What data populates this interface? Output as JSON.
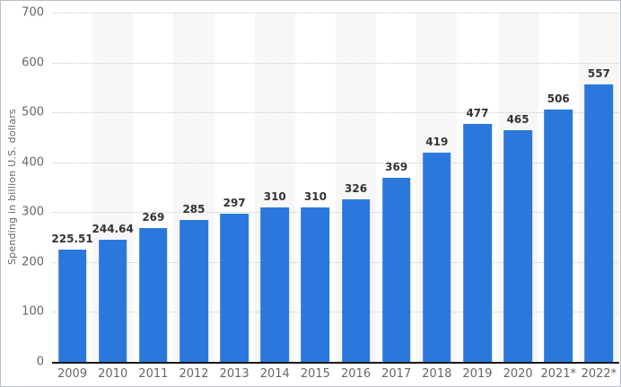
{
  "chart_data": {
    "type": "bar",
    "title": "",
    "xlabel": "",
    "ylabel": "Spending in billion U.S. dollars",
    "ylim": [
      0,
      700
    ],
    "yticks": [
      0,
      100,
      200,
      300,
      400,
      500,
      600,
      700
    ],
    "grid": "horizontal-dotted",
    "legend": "none",
    "categories": [
      "2009",
      "2010",
      "2011",
      "2012",
      "2013",
      "2014",
      "2015",
      "2016",
      "2017",
      "2018",
      "2019",
      "2020",
      "2021*",
      "2022*"
    ],
    "values": [
      225.51,
      244.64,
      269,
      285,
      297,
      310,
      310,
      326,
      369,
      419,
      477,
      465,
      506,
      557
    ],
    "value_labels": [
      "225.51",
      "244.64",
      "269",
      "285",
      "297",
      "310",
      "310",
      "326",
      "369",
      "419",
      "477",
      "465",
      "506",
      "557"
    ],
    "bar_color": "#2b78dc",
    "stripe_color": "#f7f7f7",
    "gridline_color": "#c8c8c8",
    "axis_line_color": "#15181d",
    "tick_label_color": "#666666",
    "value_label_color": "#333333"
  }
}
